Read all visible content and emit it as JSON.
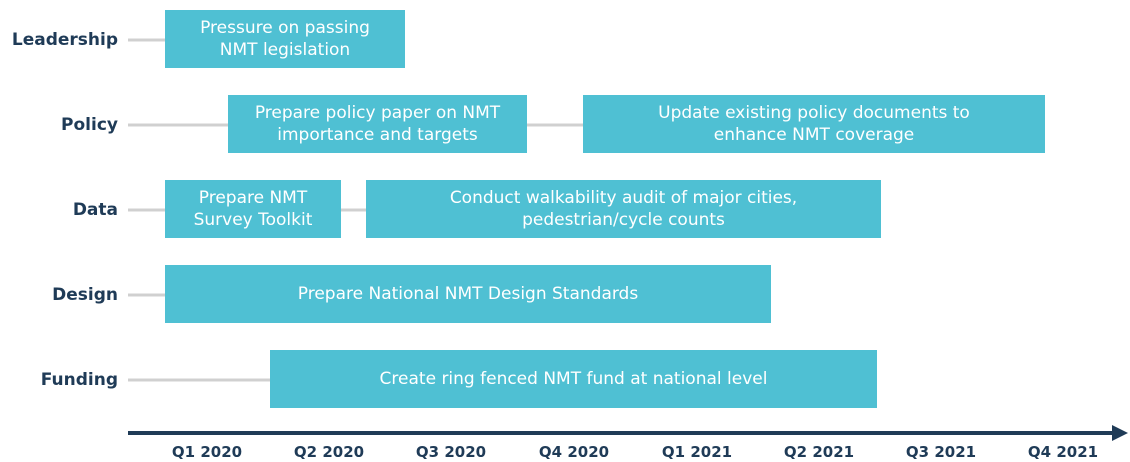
{
  "rows": [
    {
      "label": "Leadership",
      "tasks": [
        "Pressure on passing NMT legislation"
      ]
    },
    {
      "label": "Policy",
      "tasks": [
        "Prepare policy paper on NMT importance and targets",
        "Update existing policy documents to enhance NMT coverage"
      ]
    },
    {
      "label": "Data",
      "tasks": [
        "Prepare NMT Survey Toolkit",
        "Conduct walkability audit of major cities, pedestrian/cycle counts"
      ]
    },
    {
      "label": "Design",
      "tasks": [
        "Prepare National NMT Design Standards"
      ]
    },
    {
      "label": "Funding",
      "tasks": [
        "Create ring fenced NMT fund at national level"
      ]
    }
  ],
  "timeline": [
    "Q1 2020",
    "Q2 2020",
    "Q3 2020",
    "Q4 2020",
    "Q1 2021",
    "Q2 2021",
    "Q3 2021",
    "Q4 2021"
  ]
}
